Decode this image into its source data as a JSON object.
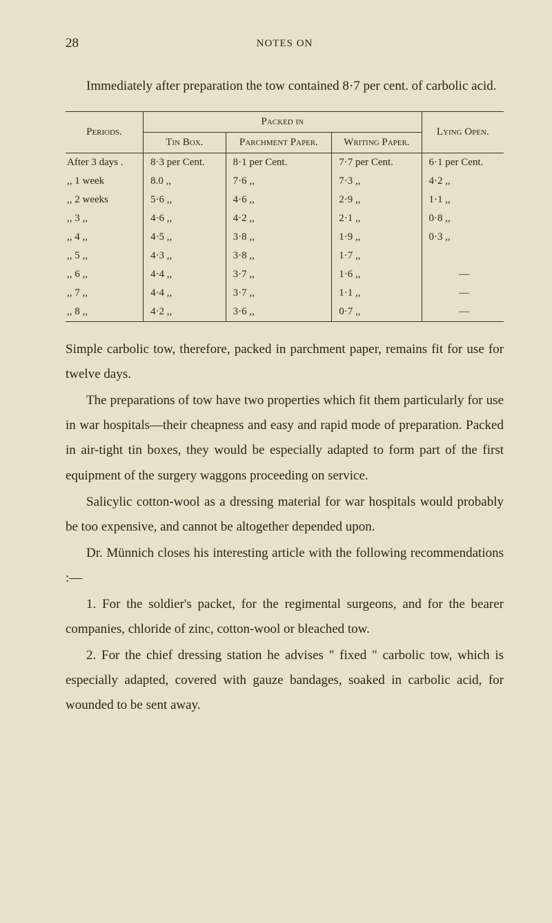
{
  "pageNumber": "28",
  "headerTitle": "NOTES ON",
  "intro": "Immediately after preparation the tow contained 8·7 per cent. of carbolic acid.",
  "table": {
    "packedIn": "Packed in",
    "periods": "Periods.",
    "tinBox": "Tin Box.",
    "parchment": "Parchment Paper.",
    "writing": "Writing Paper.",
    "lying": "Lying Open.",
    "rows": [
      {
        "period": "After 3 days .",
        "tin": "8·3 per Cent.",
        "parch": "8·1 per Cent.",
        "writ": "7·7 per Cent.",
        "open": "6·1 per Cent."
      },
      {
        "period": ",, 1 week",
        "tin": "8.0   ,,",
        "parch": "7·6   ,,",
        "writ": "7·3   ,,",
        "open": "4·2   ,,"
      },
      {
        "period": ",, 2 weeks",
        "tin": "5·6   ,,",
        "parch": "4·6   ,,",
        "writ": "2·9   ,,",
        "open": "1·1   ,,"
      },
      {
        "period": ",, 3   ,,",
        "tin": "4·6   ,,",
        "parch": "4·2   ,,",
        "writ": "2·1   ,,",
        "open": "0·8   ,,"
      },
      {
        "period": ",, 4   ,,",
        "tin": "4·5   ,,",
        "parch": "3·8   ,,",
        "writ": "1·9   ,,",
        "open": "0·3   ,,"
      },
      {
        "period": ",, 5   ,,",
        "tin": "4·3   ,,",
        "parch": "3·8   ,,",
        "writ": "1·7   ,,",
        "open": ""
      },
      {
        "period": ",, 6   ,,",
        "tin": "4·4   ,,",
        "parch": "3·7   ,,",
        "writ": "1·6   ,,",
        "open": "—"
      },
      {
        "period": ",, 7   ,,",
        "tin": "4·4   ,,",
        "parch": "3·7   ,,",
        "writ": "1·1   ,,",
        "open": "—"
      },
      {
        "period": ",, 8   ,,",
        "tin": "4·2   ,,",
        "parch": "3·6   ,,",
        "writ": "0·7   ,,",
        "open": "—"
      }
    ]
  },
  "para1": "Simple carbolic tow, therefore, packed in parchment paper, remains fit for use for twelve days.",
  "para2": "The preparations of tow have two properties which fit them particularly for use in war hospitals—their cheapness and easy and rapid mode of preparation. Packed in air-tight tin boxes, they would be especially adapted to form part of the first equipment of the surgery waggons proceeding on service.",
  "para3": "Salicylic cotton-wool as a dressing material for war hospitals would probably be too expensive, and cannot be altogether depended upon.",
  "para4": "Dr. Münnich closes his interesting article with the following recommendations :—",
  "para5": "1. For the soldier's packet, for the regimental surgeons, and for the bearer companies, chloride of zinc, cotton-wool or bleached tow.",
  "para6": "2. For the chief dressing station he advises \" fixed \" carbolic tow, which is especially adapted, covered with gauze bandages, soaked in carbolic acid, for wounded to be sent away."
}
